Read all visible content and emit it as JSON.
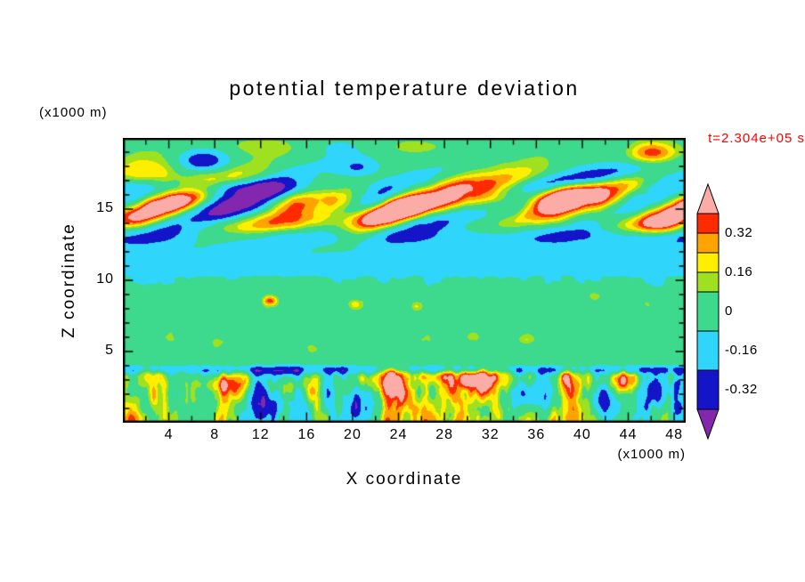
{
  "title": {
    "text": "potential temperature deviation"
  },
  "time_stamp": {
    "text": "t=2.304e+05 s",
    "color": "#FF0000"
  },
  "axis_units": {
    "y_units": "(x1000 m)",
    "x_units": "(x1000 m)"
  },
  "axes": {
    "x_label": "X coordinate",
    "y_label": "Z coordinate"
  },
  "chart_data": {
    "type": "heatmap",
    "title": "potential temperature deviation",
    "xlabel": "X coordinate (x1000 m)",
    "ylabel": "Z coordinate (x1000 m)",
    "time_annotation": "t=2.304e+05 s",
    "x_range": [
      0,
      49
    ],
    "z_range": [
      0,
      20
    ],
    "x_ticks": [
      4,
      8,
      12,
      16,
      20,
      24,
      28,
      32,
      36,
      40,
      44,
      48
    ],
    "y_ticks": [
      5,
      10,
      15
    ],
    "x_major_step": 4,
    "x_minor_step": 2,
    "y_major_step": 5,
    "y_minor_step": 1,
    "thresholds": [
      -0.4,
      -0.24,
      -0.08,
      0.08,
      0.16,
      0.24,
      0.32,
      0.4
    ],
    "colors": [
      "#8227AE",
      "#1414C8",
      "#2FD5FA",
      "#3DD98C",
      "#9FE020",
      "#FFEE00",
      "#FFA300",
      "#FF2B00",
      "#FBACA6"
    ],
    "colorbar_tick_values": [
      0.32,
      0.16,
      0,
      -0.16,
      -0.32
    ],
    "colorbar_tick_labels": [
      "0.32",
      "0.16",
      "0",
      "-0.16",
      "-0.32"
    ],
    "field_summary": "Vertical cross-section of potential temperature deviation: near-zero (green) mid-levels around z=4-10; weak negative layer (cyan) near z=10.5-12.5 topped by a strong negative band (dark blue) near z=12.5-13.5; breaking-wave pattern of tilted strong positive (red/pink) and strong negative (dark blue/purple) anomalies between z=13-18; shallow turbulent layer of mixed strong positive and negative anomalies below z=4 with a thin cold line near z=3.7."
  }
}
